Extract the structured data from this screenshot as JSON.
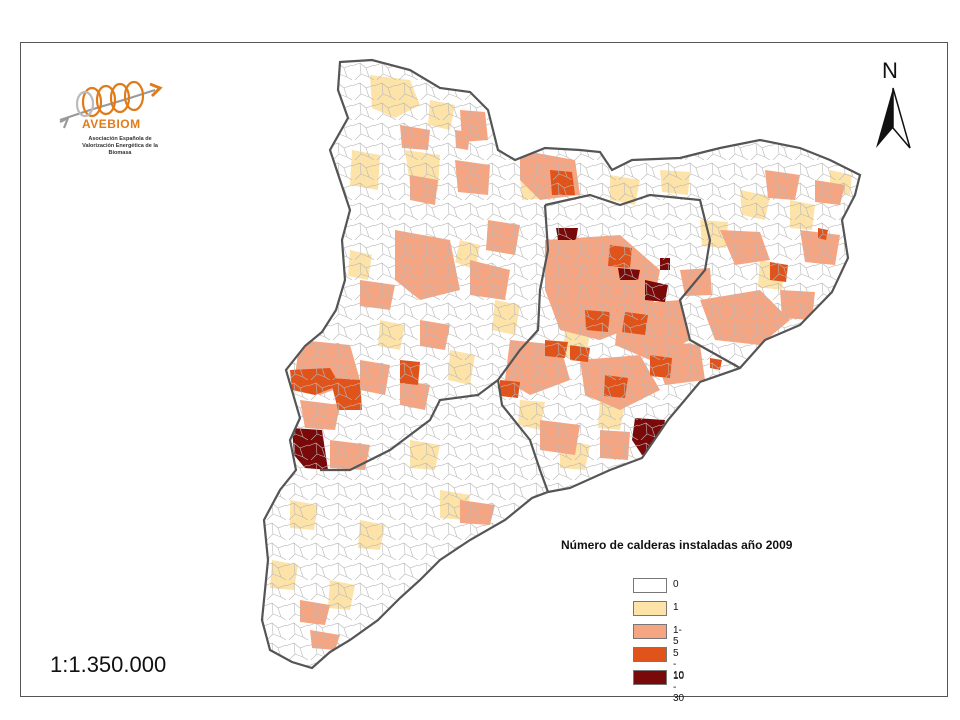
{
  "logo": {
    "name": "AVEBIOM",
    "subtitle": "Asociación Española de Valorización Energética de la Biomasa"
  },
  "north_arrow": {
    "label": "N"
  },
  "scale": {
    "text": "1:1.350.000"
  },
  "legend": {
    "title": "Número de calderas instaladas año 2009",
    "items": [
      {
        "label": "0",
        "color": "#ffffff"
      },
      {
        "label": "1",
        "color": "#fde3a7"
      },
      {
        "label": "1- 5",
        "color": "#f5a582"
      },
      {
        "label": "5 - 10",
        "color": "#e0541c"
      },
      {
        "label": "10 - 30",
        "color": "#7a0a0a"
      }
    ]
  }
}
